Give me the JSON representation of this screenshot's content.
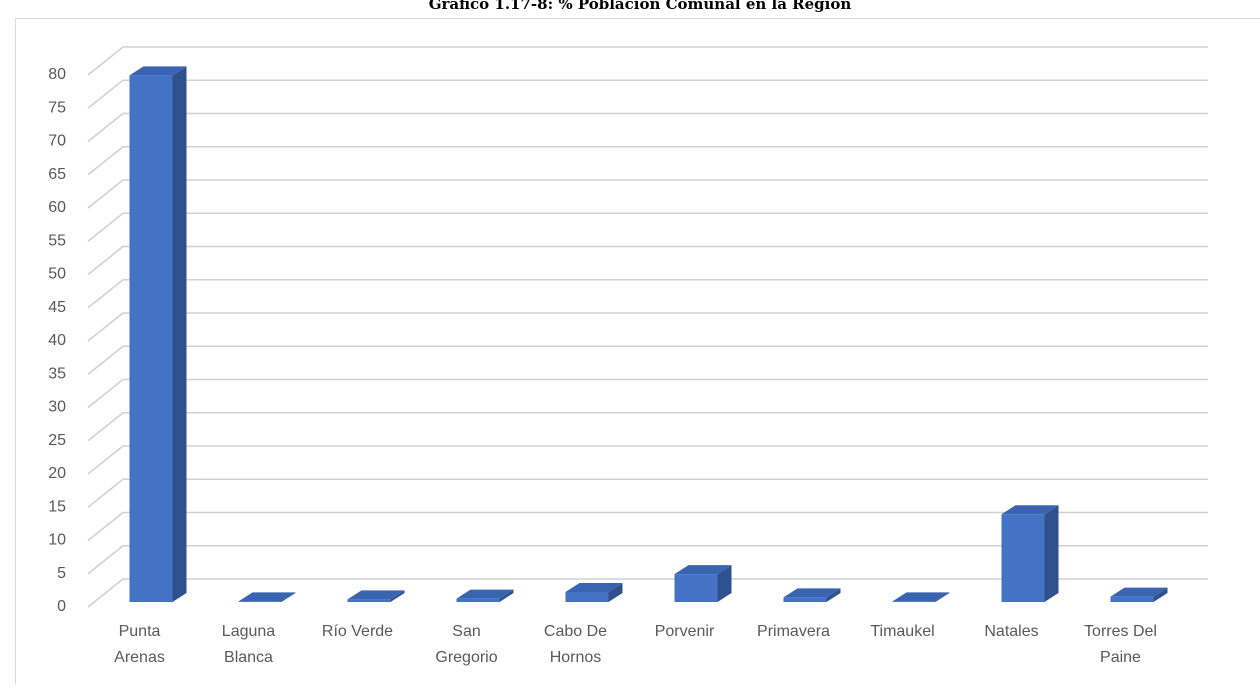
{
  "chart_data": {
    "type": "bar3d",
    "title": "Gráfico 1.17-8: % Población Comunal en la Región",
    "categories": [
      "Punta Arenas",
      "Laguna Blanca",
      "Río Verde",
      "San Gregorio",
      "Cabo De Hornos",
      "Porvenir",
      "Primavera",
      "Timaukel",
      "Natales",
      "Torres Del Paine"
    ],
    "values": [
      79.2,
      0.1,
      0.4,
      0.5,
      1.5,
      4.2,
      0.7,
      0.1,
      13.2,
      0.8
    ],
    "color": "#4472c4",
    "ylim": [
      0,
      80
    ],
    "yticks": [
      0,
      5,
      10,
      15,
      20,
      25,
      30,
      35,
      40,
      45,
      50,
      55,
      60,
      65,
      70,
      75,
      80
    ],
    "grid": true
  }
}
